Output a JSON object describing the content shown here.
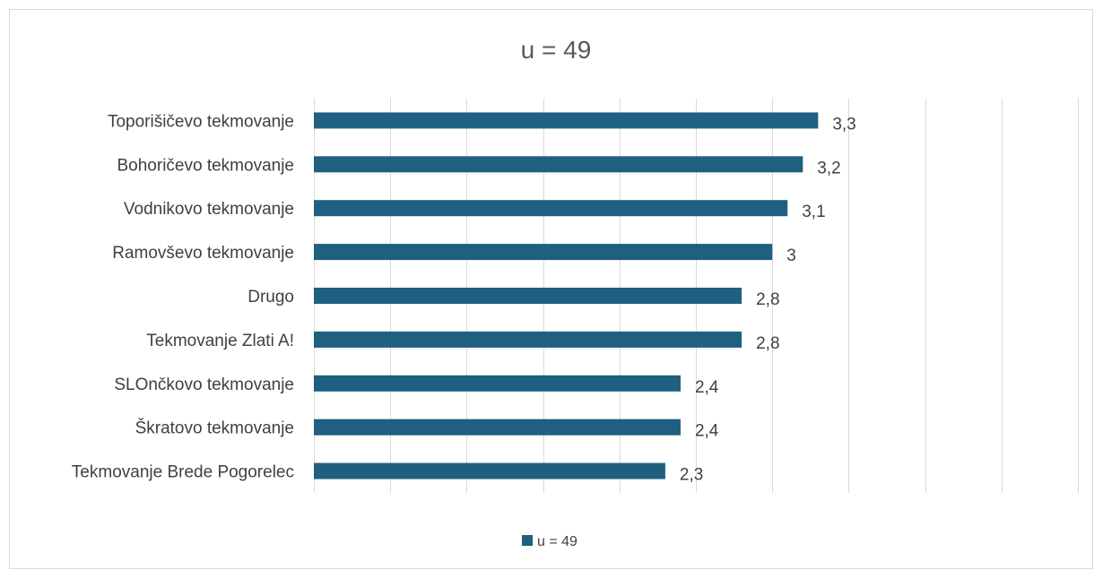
{
  "chart_data": {
    "type": "bar",
    "orientation": "horizontal",
    "title": "u = 49",
    "categories": [
      "Toporišičevo tekmovanje",
      "Bohoričevo tekmovanje",
      "Vodnikovo tekmovanje",
      "Ramovševo tekmovanje",
      "Drugo",
      "Tekmovanje Zlati A!",
      "SLOnčkovo tekmovanje",
      "Škratovo tekmovanje",
      "Tekmovanje Brede Pogorelec"
    ],
    "series": [
      {
        "name": "u = 49",
        "color": "#1f5f7f",
        "values": [
          3.3,
          3.2,
          3.1,
          3.0,
          2.8,
          2.8,
          2.4,
          2.4,
          2.3
        ],
        "labels": [
          "3,3",
          "3,2",
          "3,1",
          "3",
          "2,8",
          "2,8",
          "2,4",
          "2,4",
          "2,3"
        ]
      }
    ],
    "xlim": [
      0,
      5
    ],
    "grid": true,
    "legend_position": "bottom"
  }
}
